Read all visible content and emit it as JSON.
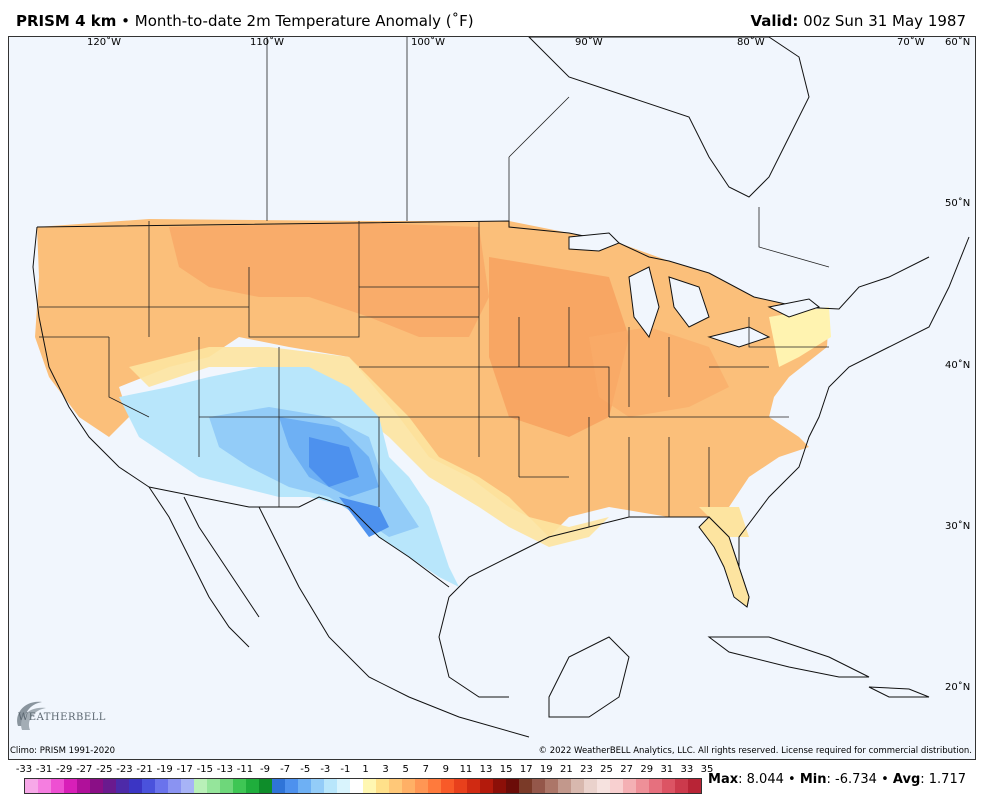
{
  "header": {
    "product": "PRISM 4 km",
    "bullet": "•",
    "description": "Month-to-date 2m Temperature Anomaly (˚F)",
    "valid_label": "Valid:",
    "valid_time": "00z Sun 31 May 1987"
  },
  "map": {
    "longitudes": [
      "120˚W",
      "110˚W",
      "100˚W",
      "90˚W",
      "80˚W",
      "70˚W"
    ],
    "latitudes": [
      "60˚N",
      "50˚N",
      "40˚N",
      "30˚N",
      "20˚N"
    ]
  },
  "footer": {
    "climo": "Climo: PRISM 1991-2020",
    "copyright": "© 2022 WeatherBELL Analytics, LLC. All rights reserved. License required for commercial distribution.",
    "logo_text": "WEATHERBELL"
  },
  "colorbar": {
    "labels": [
      "-33",
      "-31",
      "-29",
      "-27",
      "-25",
      "-23",
      "-21",
      "-19",
      "-17",
      "-15",
      "-13",
      "-11",
      "-9",
      "-7",
      "-5",
      "-3",
      "-1",
      "1",
      "3",
      "5",
      "7",
      "9",
      "11",
      "13",
      "15",
      "17",
      "19",
      "21",
      "23",
      "25",
      "27",
      "29",
      "31",
      "33",
      "35"
    ],
    "colors": [
      "#f7a8e8",
      "#f57ee0",
      "#ee4fd2",
      "#d81fb8",
      "#b0109a",
      "#8a0f86",
      "#6a1a8e",
      "#4d2aa8",
      "#3b35c4",
      "#4a52dc",
      "#6a73ec",
      "#8a93f2",
      "#a7b3f6",
      "#b9f0b8",
      "#95e59b",
      "#6ed77a",
      "#3ec654",
      "#1fae3c",
      "#0e8d2a",
      "#2f74d8",
      "#4d91ee",
      "#6eb0f4",
      "#93ccf8",
      "#b8e6fb",
      "#d9f4fd",
      "#ffffff",
      "#fff7b2",
      "#ffe08a",
      "#ffc878",
      "#ffb066",
      "#ff9654",
      "#ff7a3c",
      "#f85a28",
      "#e8401c",
      "#d02a12",
      "#b31a0c",
      "#8c0f08",
      "#6b0c08",
      "#7a3a28",
      "#94574a",
      "#ac7668",
      "#c2988c",
      "#d8b8ae",
      "#ead2cc",
      "#f6e2df",
      "#f8d0d0",
      "#f4b0b4",
      "#ee9098",
      "#e6707e",
      "#dc5464",
      "#cc3a4c",
      "#b82436"
    ],
    "stats_max_label": "Max",
    "stats_max": "8.044",
    "stats_min_label": "Min",
    "stats_min": "-6.734",
    "stats_avg_label": "Avg",
    "stats_avg": "1.717",
    "bullet": "•"
  }
}
